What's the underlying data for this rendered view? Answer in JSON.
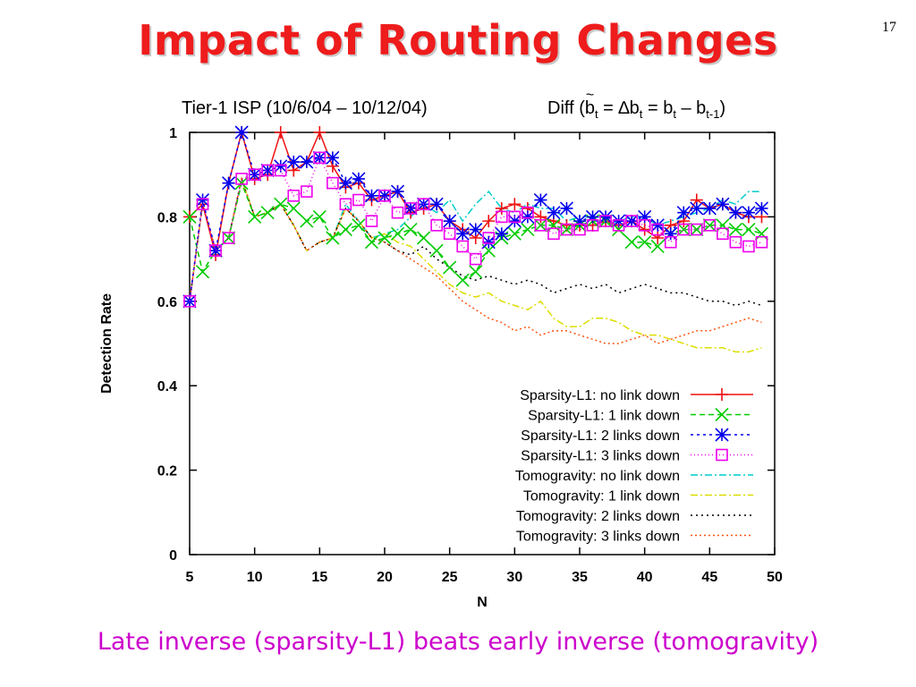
{
  "slide": {
    "title": "Impact of Routing Changes",
    "page_number": "17",
    "subtitle": "Tier-1 ISP (10/6/04 – 10/12/04)",
    "diff": {
      "prefix": "Diff (",
      "b": "b",
      "t": "t",
      "eq": " = ",
      "delta": "∆b",
      "minus": " – b",
      "tm1": "t-1",
      "suffix": ")"
    },
    "caption": "Late inverse (sparsity-L1) beats early inverse (tomogravity)"
  },
  "chart_data": {
    "type": "line",
    "xlabel": "N",
    "ylabel": "Detection Rate",
    "xlim": [
      5,
      50
    ],
    "ylim": [
      0,
      1
    ],
    "xticks": [
      "5",
      "10",
      "15",
      "20",
      "25",
      "30",
      "35",
      "40",
      "45",
      "50"
    ],
    "yticks": [
      "0",
      "0.2",
      "0.4",
      "0.6",
      "0.8",
      "1"
    ],
    "legend_position": "bottom-right",
    "x": [
      5,
      6,
      7,
      8,
      9,
      10,
      11,
      12,
      13,
      14,
      15,
      16,
      17,
      18,
      19,
      20,
      21,
      22,
      23,
      24,
      25,
      26,
      27,
      28,
      29,
      30,
      31,
      32,
      33,
      34,
      35,
      36,
      37,
      38,
      39,
      40,
      41,
      42,
      43,
      44,
      45,
      46,
      47,
      48,
      49
    ],
    "series": [
      {
        "name": "Sparsity-L1: no link down",
        "color": "#ee1111",
        "dash": "",
        "marker": "plus",
        "values": [
          0.8,
          0.83,
          0.71,
          0.88,
          1.0,
          0.89,
          0.9,
          1.0,
          0.91,
          0.93,
          1.0,
          0.92,
          0.87,
          0.88,
          0.84,
          0.85,
          0.86,
          0.81,
          0.82,
          0.83,
          0.79,
          0.77,
          0.75,
          0.79,
          0.82,
          0.83,
          0.82,
          0.8,
          0.79,
          0.78,
          0.78,
          0.78,
          0.79,
          0.78,
          0.79,
          0.77,
          0.75,
          0.78,
          0.79,
          0.84,
          0.82,
          0.83,
          0.81,
          0.8,
          0.8
        ]
      },
      {
        "name": "Sparsity-L1: 1 link down",
        "color": "#00cc00",
        "dash": "6,4",
        "marker": "x",
        "values": [
          0.8,
          0.67,
          0.72,
          0.75,
          0.88,
          0.8,
          0.81,
          0.83,
          0.82,
          0.79,
          0.8,
          0.75,
          0.77,
          0.78,
          0.74,
          0.75,
          0.76,
          0.77,
          0.75,
          0.72,
          0.68,
          0.65,
          0.67,
          0.72,
          0.75,
          0.76,
          0.77,
          0.78,
          0.78,
          0.77,
          0.78,
          0.79,
          0.79,
          0.77,
          0.74,
          0.74,
          0.73,
          0.76,
          0.77,
          0.77,
          0.78,
          0.78,
          0.77,
          0.77,
          0.76
        ]
      },
      {
        "name": "Sparsity-L1: 2 links down",
        "color": "#0000ee",
        "dash": "3,4",
        "marker": "star",
        "values": [
          0.6,
          0.84,
          0.72,
          0.88,
          1.0,
          0.9,
          0.91,
          0.92,
          0.93,
          0.93,
          0.94,
          0.94,
          0.88,
          0.89,
          0.85,
          0.85,
          0.86,
          0.82,
          0.83,
          0.83,
          0.79,
          0.76,
          0.77,
          0.74,
          0.76,
          0.79,
          0.8,
          0.84,
          0.81,
          0.82,
          0.79,
          0.8,
          0.8,
          0.79,
          0.79,
          0.8,
          0.78,
          0.76,
          0.81,
          0.82,
          0.82,
          0.83,
          0.81,
          0.81,
          0.82
        ]
      },
      {
        "name": "Sparsity-L1: 3 links down",
        "color": "#ee00ee",
        "dash": "1,3",
        "marker": "square",
        "values": [
          0.6,
          0.83,
          0.72,
          0.75,
          0.89,
          0.9,
          0.91,
          0.91,
          0.85,
          0.86,
          0.94,
          0.88,
          0.83,
          0.84,
          0.79,
          0.85,
          0.81,
          0.82,
          0.83,
          0.78,
          0.76,
          0.73,
          0.7,
          0.75,
          0.8,
          0.8,
          0.81,
          0.78,
          0.76,
          0.77,
          0.77,
          0.78,
          0.79,
          0.78,
          0.79,
          0.78,
          0.77,
          0.74,
          0.77,
          0.77,
          0.78,
          0.76,
          0.74,
          0.73,
          0.74
        ]
      },
      {
        "name": "Tomogravity: no link down",
        "color": "#00cccc",
        "dash": "8,3,2,3",
        "marker": "",
        "values": [
          0.6,
          0.83,
          0.72,
          0.75,
          0.89,
          0.8,
          0.81,
          0.83,
          0.78,
          0.72,
          0.74,
          0.75,
          0.83,
          0.79,
          0.75,
          0.76,
          0.77,
          0.8,
          0.83,
          0.81,
          0.84,
          0.79,
          0.83,
          0.86,
          0.82,
          0.81,
          0.83,
          0.82,
          0.82,
          0.79,
          0.8,
          0.8,
          0.78,
          0.79,
          0.8,
          0.8,
          0.78,
          0.79,
          0.8,
          0.81,
          0.82,
          0.84,
          0.83,
          0.86,
          0.86
        ]
      },
      {
        "name": "Tomogravity: 1 link down",
        "color": "#dddd00",
        "dash": "8,3,2,3",
        "marker": "",
        "values": [
          0.6,
          0.83,
          0.72,
          0.75,
          0.89,
          0.8,
          0.81,
          0.83,
          0.78,
          0.72,
          0.74,
          0.75,
          0.82,
          0.79,
          0.75,
          0.76,
          0.74,
          0.73,
          0.7,
          0.67,
          0.64,
          0.62,
          0.61,
          0.62,
          0.6,
          0.59,
          0.58,
          0.6,
          0.56,
          0.54,
          0.54,
          0.56,
          0.56,
          0.55,
          0.53,
          0.52,
          0.52,
          0.51,
          0.5,
          0.49,
          0.49,
          0.49,
          0.48,
          0.48,
          0.49
        ]
      },
      {
        "name": "Tomogravity: 2 links down",
        "color": "#000000",
        "dash": "2,4",
        "marker": "",
        "values": [
          0.6,
          0.83,
          0.72,
          0.75,
          0.89,
          0.8,
          0.81,
          0.83,
          0.78,
          0.72,
          0.74,
          0.75,
          0.82,
          0.79,
          0.75,
          0.74,
          0.72,
          0.71,
          0.73,
          0.7,
          0.68,
          0.66,
          0.65,
          0.66,
          0.65,
          0.64,
          0.65,
          0.64,
          0.62,
          0.63,
          0.64,
          0.63,
          0.64,
          0.62,
          0.63,
          0.64,
          0.63,
          0.62,
          0.62,
          0.61,
          0.6,
          0.6,
          0.59,
          0.6,
          0.59
        ]
      },
      {
        "name": "Tomogravity: 3 links down",
        "color": "#ff5511",
        "dash": "2,3",
        "marker": "",
        "values": [
          0.6,
          0.83,
          0.72,
          0.75,
          0.89,
          0.8,
          0.81,
          0.83,
          0.78,
          0.72,
          0.74,
          0.75,
          0.82,
          0.79,
          0.75,
          0.74,
          0.72,
          0.7,
          0.68,
          0.66,
          0.63,
          0.6,
          0.58,
          0.56,
          0.55,
          0.53,
          0.54,
          0.52,
          0.53,
          0.53,
          0.52,
          0.51,
          0.5,
          0.5,
          0.51,
          0.52,
          0.5,
          0.51,
          0.52,
          0.53,
          0.53,
          0.54,
          0.55,
          0.56,
          0.55
        ]
      }
    ]
  }
}
